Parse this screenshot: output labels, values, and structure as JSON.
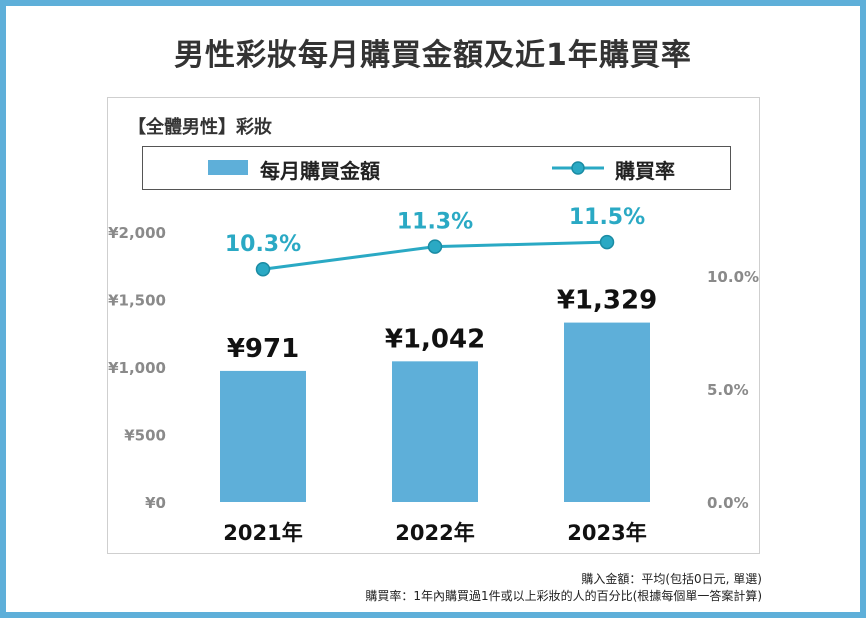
{
  "title": "男性彩妝每月購買金額及近1年購買率",
  "subtitle": "【全體男性】彩妝",
  "legend": {
    "amount_label": "每月購買金額",
    "rate_label": "購買率"
  },
  "footnotes": [
    "購入金額：平均(包括0日元, 單選)",
    "購買率：1年內購買過1件或以上彩妝的人的百分比(根據每個單一答案計算)"
  ],
  "colors": {
    "bar": "#5eafd9",
    "line": "#2aa9c4",
    "rate_label": "#2aa9c4",
    "frame": "#5eafd9"
  },
  "chart_data": {
    "type": "bar",
    "categories": [
      "2021年",
      "2022年",
      "2023年"
    ],
    "series": [
      {
        "name": "每月購買金額",
        "type": "bar",
        "axis": "left",
        "values": [
          971,
          1042,
          1329
        ],
        "labels": [
          "¥971",
          "¥1,042",
          "¥1,329"
        ]
      },
      {
        "name": "購買率",
        "type": "line",
        "axis": "right",
        "values": [
          10.3,
          11.3,
          11.5
        ],
        "labels": [
          "10.3%",
          "11.3%",
          "11.5%"
        ]
      }
    ],
    "y_left": {
      "ylim": [
        0,
        2000
      ],
      "ticks": [
        0,
        500,
        1000,
        1500,
        2000
      ],
      "tick_labels": [
        "¥0",
        "¥500",
        "¥1,000",
        "¥1,500",
        "¥2,000"
      ]
    },
    "y_right": {
      "ylim": [
        0,
        15
      ],
      "ticks": [
        0,
        5,
        10
      ],
      "tick_labels": [
        "0.0%",
        "5.0%",
        "10.0%"
      ]
    },
    "grid": false,
    "legend_position": "top"
  }
}
